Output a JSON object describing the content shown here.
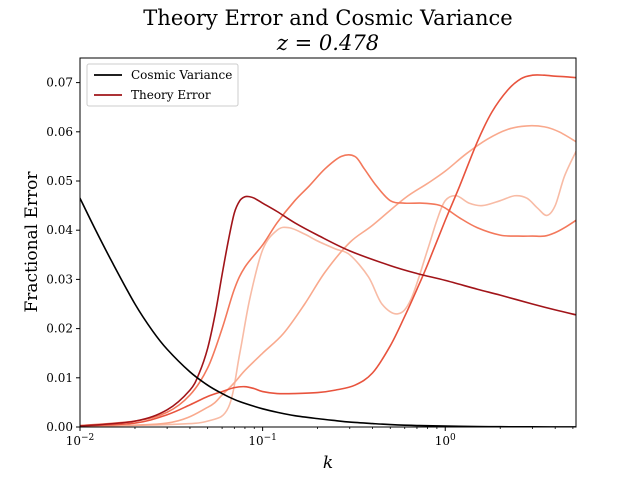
{
  "chart_data": {
    "type": "line",
    "title": "Theory Error and Cosmic Variance",
    "subtitle": "z = 0.478",
    "xlabel": "k",
    "ylabel": "Fractional Error",
    "xscale": "log",
    "xlim": [
      0.01,
      5.2
    ],
    "ylim": [
      0.0,
      0.075
    ],
    "grid": false,
    "legend_placement": "top-left",
    "x_ticks": [
      {
        "value": 0.01,
        "base": "10",
        "exp": "−2"
      },
      {
        "value": 0.1,
        "base": "10",
        "exp": "−1"
      },
      {
        "value": 1,
        "base": "10",
        "exp": "0"
      }
    ],
    "y_ticks": [
      {
        "value": 0.0,
        "label": "0.00"
      },
      {
        "value": 0.01,
        "label": "0.01"
      },
      {
        "value": 0.02,
        "label": "0.02"
      },
      {
        "value": 0.03,
        "label": "0.03"
      },
      {
        "value": 0.04,
        "label": "0.04"
      },
      {
        "value": 0.05,
        "label": "0.05"
      },
      {
        "value": 0.06,
        "label": "0.06"
      },
      {
        "value": 0.07,
        "label": "0.07"
      }
    ],
    "series": [
      {
        "name": "",
        "color": "#f8bba5",
        "x": [
          0.01,
          0.03,
          0.05,
          0.065,
          0.075,
          0.085,
          0.1,
          0.12,
          0.14,
          0.17,
          0.2,
          0.25,
          0.3,
          0.38,
          0.45,
          0.55,
          0.65,
          0.8,
          0.9,
          1.0,
          1.15,
          1.35,
          1.6,
          2.0,
          2.4,
          2.8,
          3.2,
          3.6,
          4.0,
          4.5,
          5.2
        ],
        "y": [
          0.0002,
          0.0005,
          0.0012,
          0.004,
          0.015,
          0.026,
          0.036,
          0.04,
          0.0405,
          0.0392,
          0.0378,
          0.0362,
          0.035,
          0.0305,
          0.025,
          0.023,
          0.026,
          0.036,
          0.042,
          0.046,
          0.047,
          0.0455,
          0.045,
          0.046,
          0.047,
          0.0465,
          0.0445,
          0.043,
          0.045,
          0.051,
          0.056
        ]
      },
      {
        "name": "",
        "color": "#f9a98d",
        "x": [
          0.01,
          0.03,
          0.05,
          0.06,
          0.07,
          0.08,
          0.1,
          0.13,
          0.17,
          0.22,
          0.3,
          0.4,
          0.6,
          0.8,
          1.0,
          1.3,
          1.7,
          2.2,
          2.8,
          3.5,
          4.2,
          5.2
        ],
        "y": [
          0.0002,
          0.0008,
          0.004,
          0.0065,
          0.009,
          0.0115,
          0.015,
          0.019,
          0.025,
          0.0315,
          0.0375,
          0.041,
          0.0465,
          0.0495,
          0.052,
          0.0555,
          0.0585,
          0.0605,
          0.0612,
          0.061,
          0.06,
          0.058
        ]
      },
      {
        "name": "",
        "color": "#f3785b",
        "x": [
          0.01,
          0.02,
          0.03,
          0.04,
          0.05,
          0.06,
          0.07,
          0.08,
          0.1,
          0.12,
          0.15,
          0.18,
          0.22,
          0.27,
          0.32,
          0.36,
          0.42,
          0.5,
          0.6,
          0.75,
          0.9,
          1.0,
          1.2,
          1.5,
          2.0,
          2.5,
          3.0,
          3.5,
          4.0,
          4.5,
          5.2
        ],
        "y": [
          0.0003,
          0.0012,
          0.003,
          0.0065,
          0.012,
          0.02,
          0.028,
          0.0325,
          0.037,
          0.0415,
          0.046,
          0.049,
          0.0525,
          0.055,
          0.055,
          0.0525,
          0.049,
          0.046,
          0.0455,
          0.0455,
          0.0452,
          0.0445,
          0.0425,
          0.0405,
          0.039,
          0.0388,
          0.0388,
          0.0388,
          0.0395,
          0.0405,
          0.042
        ]
      },
      {
        "name": "",
        "color": "#e8533d",
        "x": [
          0.01,
          0.02,
          0.03,
          0.04,
          0.05,
          0.06,
          0.07,
          0.08,
          0.09,
          0.1,
          0.12,
          0.15,
          0.2,
          0.25,
          0.32,
          0.4,
          0.5,
          0.6,
          0.7,
          0.8,
          1.0,
          1.2,
          1.5,
          1.8,
          2.2,
          2.6,
          3.0,
          3.5,
          4.0,
          4.5,
          5.2
        ],
        "y": [
          0.0002,
          0.0008,
          0.0025,
          0.0045,
          0.0062,
          0.0072,
          0.008,
          0.0082,
          0.0078,
          0.0072,
          0.0068,
          0.0068,
          0.007,
          0.0075,
          0.0085,
          0.011,
          0.0165,
          0.0225,
          0.028,
          0.033,
          0.042,
          0.049,
          0.058,
          0.064,
          0.0685,
          0.0708,
          0.0715,
          0.0715,
          0.0713,
          0.0712,
          0.071
        ]
      },
      {
        "name": "Theory Error",
        "color": "#a11419",
        "x": [
          0.01,
          0.02,
          0.03,
          0.04,
          0.045,
          0.05,
          0.055,
          0.06,
          0.065,
          0.07,
          0.075,
          0.08,
          0.085,
          0.09,
          0.1,
          0.12,
          0.15,
          0.2,
          0.3,
          0.5,
          0.7,
          1.0,
          1.5,
          2.0,
          3.0,
          4.0,
          5.2
        ],
        "y": [
          0.0002,
          0.0012,
          0.0035,
          0.0075,
          0.011,
          0.016,
          0.023,
          0.031,
          0.038,
          0.0435,
          0.046,
          0.0468,
          0.0468,
          0.0465,
          0.0455,
          0.0438,
          0.0415,
          0.039,
          0.0358,
          0.0328,
          0.0312,
          0.0298,
          0.028,
          0.0268,
          0.025,
          0.0238,
          0.0228
        ]
      },
      {
        "name": "Cosmic Variance",
        "color": "#000000",
        "x": [
          0.01,
          0.012,
          0.015,
          0.02,
          0.025,
          0.03,
          0.04,
          0.05,
          0.06,
          0.07,
          0.08,
          0.1,
          0.12,
          0.15,
          0.2,
          0.25,
          0.3,
          0.4,
          0.5,
          0.7,
          1.0,
          1.5,
          2.0,
          3.0,
          4.0,
          5.2
        ],
        "y": [
          0.0465,
          0.0405,
          0.0335,
          0.025,
          0.0195,
          0.0158,
          0.0112,
          0.0085,
          0.0068,
          0.0056,
          0.0048,
          0.0037,
          0.003,
          0.0023,
          0.0017,
          0.0013,
          0.001,
          0.0007,
          0.0005,
          0.0003,
          0.0002,
          0.0001,
          6e-05,
          3e-05,
          2e-05,
          1e-05
        ]
      }
    ],
    "legend": [
      {
        "label": "Cosmic Variance",
        "color": "#000000"
      },
      {
        "label": "Theory Error",
        "color": "#a11419"
      }
    ]
  }
}
